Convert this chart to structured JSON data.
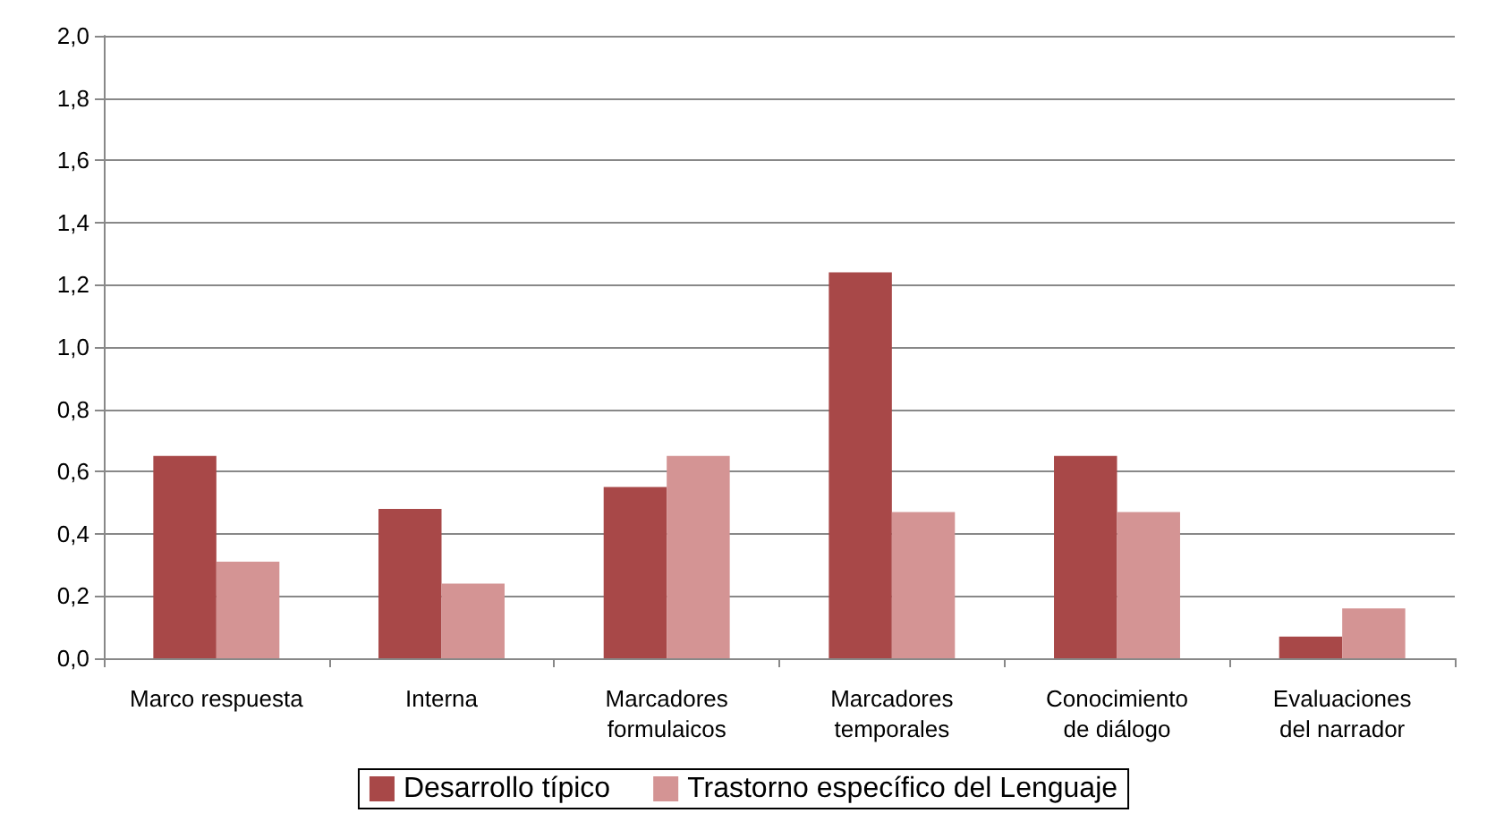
{
  "chart_data": {
    "type": "bar",
    "categories": [
      "Marco respuesta",
      "Interna",
      "Marcadores\nformulaicos",
      "Marcadores\ntemporales",
      "Conocimiento\nde diálogo",
      "Evaluaciones\ndel narrador"
    ],
    "series": [
      {
        "name": "Desarrollo típico",
        "color": "#a84848",
        "values": [
          0.65,
          0.48,
          0.55,
          1.24,
          0.65,
          0.07
        ]
      },
      {
        "name": "Trastorno específico del Lenguaje",
        "color": "#d49494",
        "values": [
          0.31,
          0.24,
          0.65,
          0.47,
          0.47,
          0.16
        ]
      }
    ],
    "ylim": [
      0,
      2
    ],
    "yticks": [
      {
        "value": 0,
        "label": "0,0"
      },
      {
        "value": 0.2,
        "label": "0,2"
      },
      {
        "value": 0.4,
        "label": "0,4"
      },
      {
        "value": 0.6,
        "label": "0,6"
      },
      {
        "value": 0.8,
        "label": "0,8"
      },
      {
        "value": 1,
        "label": "1,0"
      },
      {
        "value": 1.2,
        "label": "1,2"
      },
      {
        "value": 1.4,
        "label": "1,4"
      },
      {
        "value": 1.6,
        "label": "1,6"
      },
      {
        "value": 1.8,
        "label": "1,8"
      },
      {
        "value": 2,
        "label": "2,0"
      }
    ],
    "grid": "y",
    "legend": "bottom"
  }
}
